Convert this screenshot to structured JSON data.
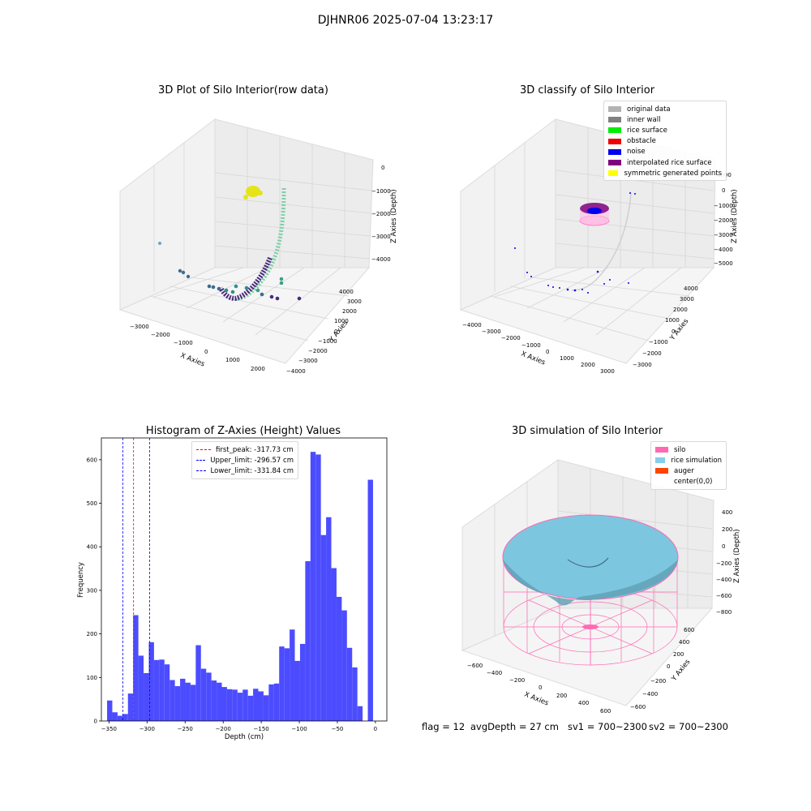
{
  "suptitle": "DJHNR06 2025-07-04 13:23:17",
  "panels": {
    "raw": {
      "title": "3D Plot of Silo Interior(row data)",
      "xlabel": "X Axies",
      "ylabel": "Y Axies",
      "zlabel": "Z Axies (Depth)",
      "xticks": [
        "−3000",
        "−2000",
        "−1000",
        "0",
        "1000",
        "2000"
      ],
      "yticks": [
        "−4000",
        "−3000",
        "−2000",
        "−1000",
        "0",
        "1000",
        "2000",
        "3000",
        "4000"
      ],
      "zticks": [
        "0",
        "−1000",
        "−2000",
        "−3000",
        "−4000"
      ]
    },
    "classify": {
      "title": "3D classify of Silo Interior",
      "xlabel": "X Axies",
      "ylabel": "Y Axies",
      "zlabel": "Z Axies (Depth)",
      "xticks": [
        "−4000",
        "−3000",
        "−2000",
        "−1000",
        "0",
        "1000",
        "2000",
        "3000"
      ],
      "yticks": [
        "−3000",
        "−2000",
        "−1000",
        "0",
        "1000",
        "2000",
        "3000",
        "4000"
      ],
      "zticks": [
        "1000",
        "0",
        "−1000",
        "−2000",
        "−3000",
        "−4000",
        "−5000"
      ],
      "legend": [
        {
          "label": "original data",
          "color": "#b3b3b3"
        },
        {
          "label": "inner wall",
          "color": "#808080"
        },
        {
          "label": "rice surface",
          "color": "#00ee00"
        },
        {
          "label": "obstacle",
          "color": "#ee0000"
        },
        {
          "label": "noise",
          "color": "#0000ee"
        },
        {
          "label": "interpolated rice surface",
          "color": "#800080"
        },
        {
          "label": "symmetric generated points",
          "color": "#ffff00"
        }
      ]
    },
    "simulation": {
      "title": "3D simulation of Silo Interior",
      "xlabel": "X Axies",
      "ylabel": "Y Axies",
      "zlabel": "Z Axies (Depth)",
      "xticks": [
        "−600",
        "−400",
        "−200",
        "0",
        "200",
        "400",
        "600"
      ],
      "yticks": [
        "−600",
        "−400",
        "−200",
        "0",
        "200",
        "400",
        "600"
      ],
      "zticks": [
        "400",
        "200",
        "0",
        "−200",
        "−400",
        "−600",
        "−800"
      ],
      "legend": [
        {
          "label": "silo",
          "color": "#ff69b4"
        },
        {
          "label": "rice simulation",
          "color": "#87ceeb"
        },
        {
          "label": "auger",
          "color": "#ff4500"
        },
        {
          "label": "center(0,0)",
          "color": "#ffffff"
        }
      ]
    }
  },
  "footer": {
    "flag": "flag = 12",
    "avg": "avgDepth = 27 cm",
    "sv1": "sv1 = 700~2300",
    "sv2": "sv2 = 700~2300"
  },
  "chart_data": [
    {
      "type": "bar",
      "title": "Histogram of Z-Axies (Height) Values",
      "xlabel": "Depth (cm)",
      "ylabel": "Frequency",
      "bar_color": "#4c4cff",
      "bin_width": 6.85,
      "bins_start": -352.5,
      "xlim": [
        -360,
        15
      ],
      "ylim": [
        0,
        650
      ],
      "xticks": [
        -350,
        -300,
        -250,
        -200,
        -150,
        -100,
        -50,
        0
      ],
      "yticks": [
        0,
        100,
        200,
        300,
        400,
        500,
        600
      ],
      "values": [
        47,
        20,
        12,
        16,
        63,
        243,
        150,
        110,
        181,
        140,
        141,
        130,
        94,
        80,
        97,
        88,
        83,
        174,
        120,
        111,
        93,
        88,
        78,
        73,
        72,
        65,
        72,
        58,
        74,
        68,
        59,
        84,
        86,
        171,
        167,
        210,
        138,
        177,
        367,
        618,
        612,
        427,
        468,
        351,
        285,
        254,
        168,
        123,
        34,
        0,
        554
      ],
      "vlines": [
        {
          "label": "first_peak: -317.73 cm",
          "x": -317.73,
          "color": "#ff0000"
        },
        {
          "label": "Upper_limit: -296.57 cm",
          "x": -296.57,
          "color": "#0000ff"
        },
        {
          "label": "Lower_limit: -331.84 cm",
          "x": -331.84,
          "color": "#0000ff"
        }
      ]
    }
  ]
}
